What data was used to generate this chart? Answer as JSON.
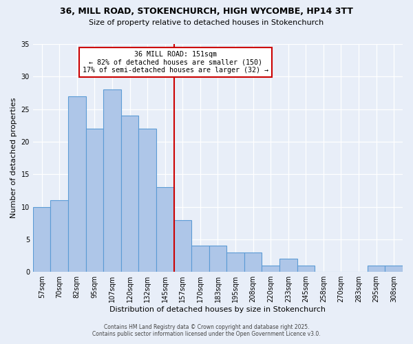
{
  "title1": "36, MILL ROAD, STOKENCHURCH, HIGH WYCOMBE, HP14 3TT",
  "title2": "Size of property relative to detached houses in Stokenchurch",
  "xlabel": "Distribution of detached houses by size in Stokenchurch",
  "ylabel": "Number of detached properties",
  "bar_labels": [
    "57sqm",
    "70sqm",
    "82sqm",
    "95sqm",
    "107sqm",
    "120sqm",
    "132sqm",
    "145sqm",
    "157sqm",
    "170sqm",
    "183sqm",
    "195sqm",
    "208sqm",
    "220sqm",
    "233sqm",
    "245sqm",
    "258sqm",
    "270sqm",
    "283sqm",
    "295sqm",
    "308sqm"
  ],
  "bar_values": [
    10,
    11,
    27,
    22,
    28,
    24,
    22,
    13,
    8,
    4,
    4,
    3,
    3,
    1,
    2,
    1,
    0,
    0,
    0,
    1,
    1
  ],
  "bar_color": "#aec6e8",
  "bar_edge_color": "#5b9bd5",
  "background_color": "#e8eef8",
  "vline_color": "#cc0000",
  "annotation_title": "36 MILL ROAD: 151sqm",
  "annotation_line1": "← 82% of detached houses are smaller (150)",
  "annotation_line2": "17% of semi-detached houses are larger (32) →",
  "annotation_box_color": "#cc0000",
  "ylim": [
    0,
    35
  ],
  "yticks": [
    0,
    5,
    10,
    15,
    20,
    25,
    30,
    35
  ],
  "footnote1": "Contains HM Land Registry data © Crown copyright and database right 2025.",
  "footnote2": "Contains public sector information licensed under the Open Government Licence v3.0."
}
